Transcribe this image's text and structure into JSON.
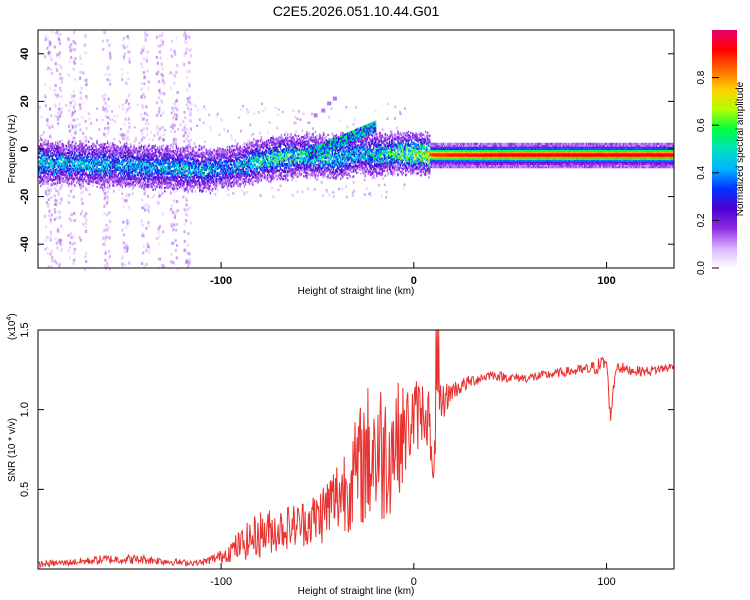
{
  "title": "C2E5.2026.051.10.44.G01",
  "colors": {
    "snr_line": "#e8322f",
    "colorbar": [
      "#ffffff",
      "#d9b3ff",
      "#8c2be2",
      "#4b00d2",
      "#0033ff",
      "#00b4ff",
      "#00e0c0",
      "#00ff40",
      "#b4ff00",
      "#ffd000",
      "#ff6a00",
      "#ff0000",
      "#e6006e"
    ]
  },
  "chart_data": [
    {
      "id": "spectrogram",
      "type": "heatmap",
      "xlabel": "Height of straight line (km)",
      "ylabel": "Frequency (Hz)",
      "xlim": [
        -195,
        135
      ],
      "ylim": [
        -50,
        50
      ],
      "xticks": [
        -100,
        0,
        100
      ],
      "xtick_labels": [
        "-100",
        "0",
        "100"
      ],
      "yticks": [
        -40,
        -20,
        0,
        20,
        40
      ],
      "ytick_labels": [
        "-40",
        "-20",
        "0",
        "20",
        "40"
      ],
      "colorbar": {
        "label": "Normalized spectral amplitude",
        "range": [
          0,
          1
        ],
        "ticks": [
          0.0,
          0.2,
          0.4,
          0.6,
          0.8
        ],
        "tick_labels": [
          "0.0",
          "0.2",
          "0.4",
          "0.6",
          "0.8"
        ]
      },
      "trend": {
        "x": [
          -195,
          -160,
          -130,
          -110,
          -95,
          -80,
          -70,
          -55,
          -40,
          -28,
          -20,
          -10,
          0,
          10,
          50,
          100,
          135
        ],
        "freq": [
          -5,
          -6,
          -7,
          -8,
          -7,
          -4,
          -3,
          -2,
          -3,
          -1,
          -2,
          -1,
          -1,
          -2,
          -2,
          -2,
          -2
        ],
        "amplitude": [
          0.55,
          0.5,
          0.5,
          0.5,
          0.45,
          0.6,
          0.6,
          0.6,
          0.55,
          0.5,
          0.55,
          0.6,
          0.7,
          0.9,
          0.95,
          0.95,
          0.95
        ]
      }
    },
    {
      "id": "snr",
      "type": "line",
      "xlabel": "Height of straight line (km)",
      "ylabel": "SNR (10 * v/v)",
      "y_multiplier": "(x10",
      "y_multiplier_exp": "4",
      "y_multiplier_close": ")",
      "xlim": [
        -195,
        135
      ],
      "ylim": [
        0,
        1.5
      ],
      "xticks": [
        -100,
        0,
        100
      ],
      "xtick_labels": [
        "-100",
        "0",
        "100"
      ],
      "yticks": [
        0.5,
        1.0,
        1.5
      ],
      "ytick_labels": [
        "0.5",
        "1.0",
        "1.5"
      ],
      "series": [
        {
          "name": "SNR",
          "x": [
            -195,
            -180,
            -160,
            -140,
            -120,
            -110,
            -100,
            -90,
            -80,
            -70,
            -60,
            -50,
            -40,
            -30,
            -25,
            -20,
            -15,
            -10,
            -5,
            0,
            5,
            8,
            10,
            12,
            15,
            20,
            30,
            40,
            50,
            60,
            70,
            80,
            90,
            95,
            100,
            102,
            105,
            110,
            120,
            135
          ],
          "y": [
            0.03,
            0.04,
            0.06,
            0.06,
            0.04,
            0.04,
            0.08,
            0.15,
            0.22,
            0.25,
            0.28,
            0.32,
            0.45,
            0.6,
            0.7,
            0.75,
            0.72,
            0.8,
            0.85,
            0.95,
            1.0,
            0.95,
            0.5,
            1.05,
            1.05,
            1.12,
            1.18,
            1.22,
            1.2,
            1.2,
            1.22,
            1.24,
            1.25,
            1.27,
            1.3,
            0.95,
            1.28,
            1.25,
            1.24,
            1.27
          ],
          "noise": [
            0.02,
            0.02,
            0.03,
            0.03,
            0.02,
            0.02,
            0.04,
            0.1,
            0.15,
            0.14,
            0.14,
            0.18,
            0.25,
            0.35,
            0.45,
            0.5,
            0.45,
            0.4,
            0.3,
            0.25,
            0.2,
            0.2,
            0.05,
            0.15,
            0.12,
            0.06,
            0.04,
            0.03,
            0.03,
            0.03,
            0.03,
            0.03,
            0.04,
            0.05,
            0.06,
            0.04,
            0.05,
            0.03,
            0.03,
            0.03
          ]
        }
      ]
    }
  ]
}
